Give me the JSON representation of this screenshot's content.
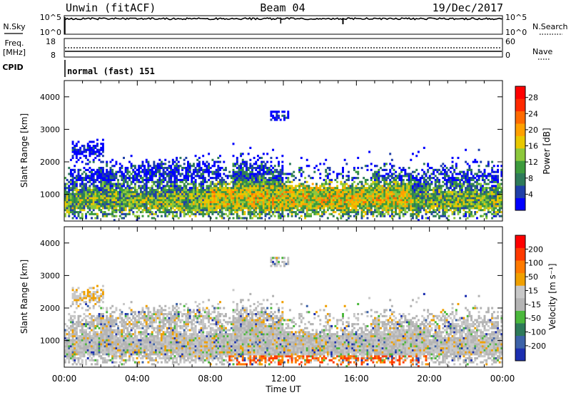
{
  "header": {
    "station": "Unwin (fitACF)",
    "beam": "Beam 04",
    "date": "19/Dec/2017"
  },
  "top_panels": {
    "nsky": {
      "label": "N.Sky",
      "ticks": [
        "10^5",
        "10^0"
      ]
    },
    "nsearch": {
      "label": "N.Search",
      "ticks": [
        "10^5",
        "10^0"
      ]
    },
    "freq": {
      "label_line1": "Freq.",
      "label_line2": "[MHz]",
      "ticks": [
        "18",
        "8"
      ]
    },
    "nave": {
      "label": "Nave",
      "ticks": [
        "60",
        "0"
      ]
    },
    "cpid": {
      "label": "CPID",
      "value": "normal (fast) 151"
    }
  },
  "chart_data": [
    {
      "type": "heatmap",
      "panel": "power",
      "ylabel": "Slant Range [km]",
      "xlabel": "Time UT",
      "x_range": [
        "00:00",
        "24:00"
      ],
      "y_range": [
        180,
        4500
      ],
      "x_ticks": [
        "00:00",
        "04:00",
        "08:00",
        "12:00",
        "16:00",
        "20:00",
        "00:00"
      ],
      "y_ticks": [
        1000,
        2000,
        3000,
        4000
      ],
      "colorbar": {
        "label": "Power [dB]",
        "ticks": [
          "4",
          "8",
          "12",
          "16",
          "20",
          "24",
          "28"
        ],
        "colors": [
          "#0000ff",
          "#1f3fa8",
          "#2e7a5a",
          "#3d9b3d",
          "#8cc83c",
          "#e8c800",
          "#ffa000",
          "#ff6a00",
          "#ff2a00",
          "#ff0000"
        ]
      }
    },
    {
      "type": "heatmap",
      "panel": "velocity",
      "ylabel": "Slant Range [km]",
      "xlabel": "Time UT",
      "x_range": [
        "00:00",
        "24:00"
      ],
      "y_range": [
        180,
        4500
      ],
      "x_ticks": [
        "00:00",
        "04:00",
        "08:00",
        "12:00",
        "16:00",
        "20:00",
        "00:00"
      ],
      "y_ticks": [
        1000,
        2000,
        3000,
        4000
      ],
      "colorbar": {
        "label": "Velocity [m s⁻¹]",
        "ticks": [
          "200",
          "100",
          "50",
          "15",
          "-15",
          "-50",
          "-100",
          "-200"
        ],
        "colors": [
          "#1c2fb0",
          "#3c62a8",
          "#2e7a5a",
          "#4bb83c",
          "#b4b4b4",
          "#c8c8c8",
          "#f0a000",
          "#ff7a00",
          "#ff3a00",
          "#ff0000"
        ]
      }
    }
  ],
  "colors": {
    "frame": "#000000",
    "ground_scatter": "#b0b0a8"
  }
}
